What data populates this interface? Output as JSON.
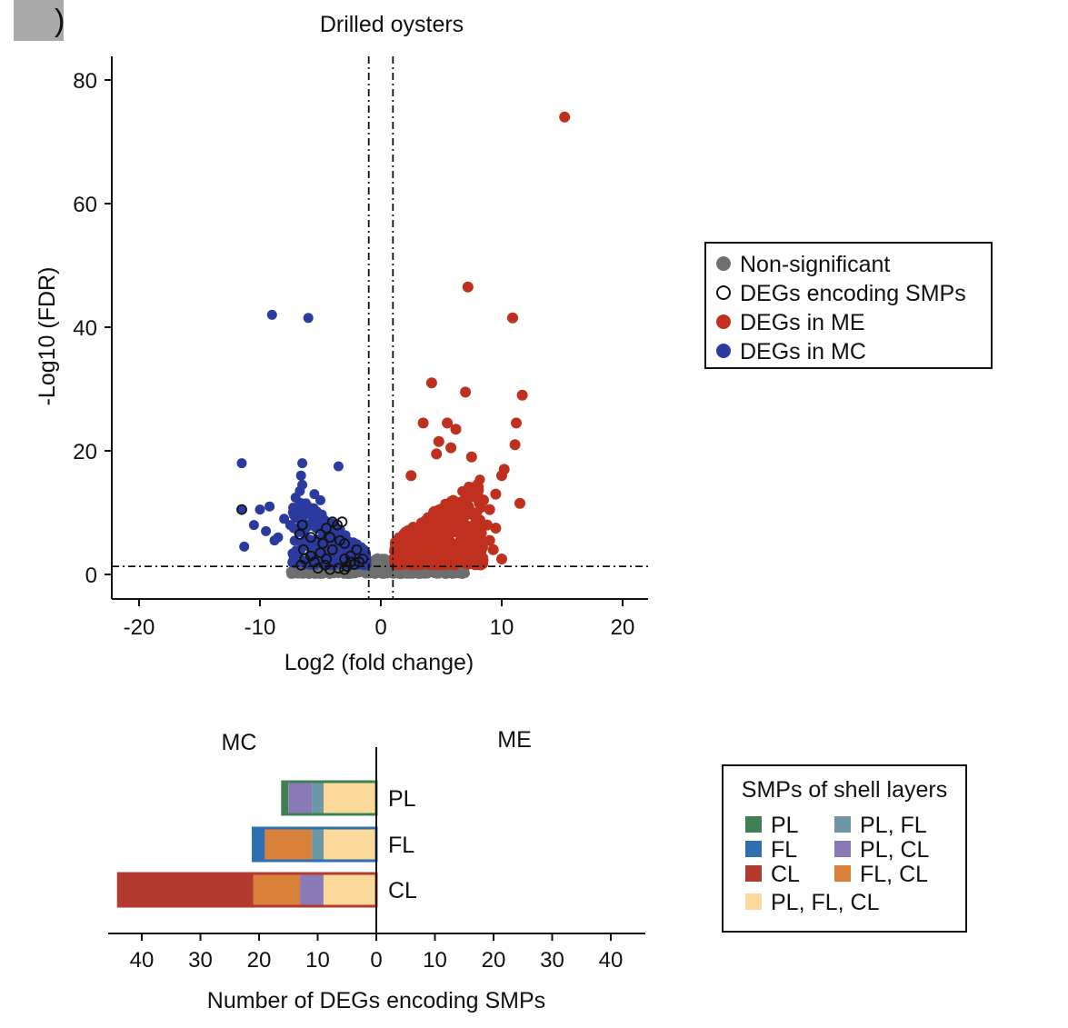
{
  "panel_label": ")",
  "chart_data": [
    {
      "type": "scatter",
      "title": "Drilled oysters",
      "xlabel": "Log2 (fold change)",
      "ylabel": "-Log10 (FDR)",
      "xlim": [
        -22,
        22
      ],
      "ylim": [
        -4,
        84
      ],
      "xticks": [
        "-20",
        "-10",
        "0",
        "10",
        "20"
      ],
      "xtick_values": [
        -20,
        -10,
        0,
        10,
        20
      ],
      "yticks": [
        "0",
        "20",
        "40",
        "60",
        "80"
      ],
      "ytick_values": [
        0,
        20,
        40,
        60,
        80
      ],
      "fc_threshold_lines": [
        -1,
        1
      ],
      "fdr_threshold_line": 1.3,
      "legend": {
        "position": "right",
        "entries": [
          {
            "label": "Non-significant",
            "style": "filled",
            "color": "#6e6e6e"
          },
          {
            "label": "DEGs encoding SMPs",
            "style": "open",
            "color": "#111111"
          },
          {
            "label": "DEGs in ME",
            "style": "filled",
            "color": "#c0301f"
          },
          {
            "label": "DEGs in MC",
            "style": "filled",
            "color": "#2b3a9e"
          }
        ]
      },
      "series": [
        {
          "name": "DEGs in ME",
          "color": "#c0301f",
          "highlight_points": [
            [
              15.2,
              74
            ],
            [
              7.2,
              46.5
            ],
            [
              10.9,
              41.5
            ],
            [
              4.2,
              31
            ],
            [
              7.0,
              29.5
            ],
            [
              11.7,
              29
            ],
            [
              3.5,
              24.5
            ],
            [
              5.5,
              24.5
            ],
            [
              6.2,
              23.5
            ],
            [
              11.2,
              24.5
            ],
            [
              4.8,
              21.5
            ],
            [
              11.1,
              21
            ],
            [
              5.8,
              20.5
            ],
            [
              7.5,
              19
            ],
            [
              4.6,
              19.5
            ],
            [
              10.2,
              17
            ],
            [
              10.0,
              16
            ],
            [
              2.5,
              16
            ],
            [
              8.0,
              13
            ],
            [
              8.5,
              12
            ],
            [
              9.5,
              13
            ],
            [
              11.5,
              11.5
            ],
            [
              9.0,
              10.5
            ],
            [
              8.8,
              8
            ],
            [
              9.5,
              7.5
            ],
            [
              9.0,
              5.5
            ],
            [
              10.0,
              2.5
            ],
            [
              9.3,
              4
            ],
            [
              7.5,
              2
            ]
          ],
          "cloud": {
            "n": 620,
            "x_range": [
              1.0,
              8.5
            ],
            "y_range": [
              1.5,
              17
            ]
          }
        },
        {
          "name": "DEGs in MC",
          "color": "#2b3a9e",
          "highlight_points": [
            [
              -9,
              42
            ],
            [
              -6,
              41.5
            ],
            [
              -11.5,
              18
            ],
            [
              -6.5,
              18
            ],
            [
              -3.5,
              17.5
            ],
            [
              -6.6,
              16
            ],
            [
              -6.5,
              14.5
            ],
            [
              -6.7,
              13.5
            ],
            [
              -5.5,
              13
            ],
            [
              -11.5,
              10.5
            ],
            [
              -10.0,
              10.5
            ],
            [
              -9.2,
              11
            ],
            [
              -8.0,
              9
            ],
            [
              -7.5,
              8
            ],
            [
              -10.5,
              8
            ],
            [
              -9.5,
              7
            ],
            [
              -8.5,
              6
            ],
            [
              -11.3,
              4.5
            ],
            [
              -8.8,
              5.5
            ],
            [
              -7.2,
              7.5
            ],
            [
              -6.8,
              10.5
            ],
            [
              -6.2,
              11.5
            ],
            [
              -5.0,
              12
            ]
          ],
          "cloud": {
            "n": 260,
            "x_range": [
              -7.5,
              -1.0
            ],
            "y_range": [
              1.5,
              13
            ]
          }
        },
        {
          "name": "Non-significant",
          "color": "#6e6e6e",
          "cloud": {
            "n": 900,
            "x_range": [
              -7.5,
              7.0
            ],
            "y_range": [
              0,
              2
            ]
          }
        },
        {
          "name": "DEGs encoding SMPs",
          "color": "#111111",
          "open": true,
          "highlight_points": [
            [
              -11.5,
              10.5
            ],
            [
              -6.5,
              8
            ],
            [
              -6.7,
              6.5
            ],
            [
              -5.8,
              6
            ],
            [
              -4.5,
              7.5
            ],
            [
              -4.0,
              8.5
            ],
            [
              -3.6,
              8
            ],
            [
              -3.2,
              8.5
            ],
            [
              -5.0,
              6.5
            ],
            [
              -4.8,
              5
            ],
            [
              -4.2,
              6
            ],
            [
              -3.4,
              5.5
            ],
            [
              -6.4,
              4
            ],
            [
              -5.8,
              3
            ],
            [
              -5.0,
              3.5
            ],
            [
              -4.5,
              2.5
            ],
            [
              -4.0,
              4
            ],
            [
              -3.0,
              5
            ],
            [
              -2.5,
              3
            ],
            [
              -3.0,
              2.5
            ],
            [
              -2.0,
              4
            ],
            [
              -1.8,
              2
            ],
            [
              -2.5,
              2
            ],
            [
              -6.3,
              2.5
            ],
            [
              -5.5,
              2
            ],
            [
              -4.6,
              1.5
            ],
            [
              -3.5,
              1
            ],
            [
              -2.8,
              1.3
            ],
            [
              -1.5,
              2.5
            ],
            [
              -6.6,
              1.5
            ],
            [
              -5.2,
              1
            ],
            [
              -4.2,
              0.8
            ],
            [
              -3.0,
              0.8
            ],
            [
              -2.2,
              1.6
            ]
          ]
        }
      ]
    },
    {
      "type": "bar",
      "orientation": "horizontal-stacked",
      "xlabel": "Number of DEGs encoding SMPs",
      "group_labels": [
        "MC",
        "ME"
      ],
      "xticks": [
        "40",
        "30",
        "20",
        "10",
        "0",
        "10",
        "20",
        "30",
        "40"
      ],
      "xtick_values": [
        -40,
        -30,
        -20,
        -10,
        0,
        10,
        20,
        30,
        40
      ],
      "xlim": [
        -46,
        46
      ],
      "categories": [
        "PL",
        "FL",
        "CL"
      ],
      "series": [
        {
          "name": "PL, FL, CL",
          "color": "#fbd99a",
          "values_MC": [
            9,
            9,
            9
          ]
        },
        {
          "name": "PL, FL",
          "color": "#6f98a6",
          "values_MC": [
            2,
            2,
            0
          ]
        },
        {
          "name": "PL, CL",
          "color": "#8979b6",
          "values_MC": [
            4,
            0,
            4
          ]
        },
        {
          "name": "FL, CL",
          "color": "#d9803a",
          "values_MC": [
            0,
            8,
            8
          ]
        },
        {
          "name": "PL",
          "color": "#3f8153",
          "values_MC": [
            1,
            0,
            0
          ]
        },
        {
          "name": "FL",
          "color": "#2f6fb0",
          "values_MC": [
            0,
            2,
            0
          ]
        },
        {
          "name": "CL",
          "color": "#b23a2e",
          "values_MC": [
            0,
            0,
            23
          ]
        }
      ],
      "values_ME": [
        0,
        0,
        0
      ],
      "totals_MC": [
        16,
        21,
        44
      ],
      "outline_colors": [
        "#3f8153",
        "#2f6fb0",
        "#b23a2e"
      ],
      "legend": {
        "title": "SMPs of shell layers",
        "position": "right",
        "entries": [
          {
            "label": "PL",
            "color": "#3f8153"
          },
          {
            "label": "PL, FL",
            "color": "#6f98a6"
          },
          {
            "label": "FL",
            "color": "#2f6fb0"
          },
          {
            "label": "PL, CL",
            "color": "#8979b6"
          },
          {
            "label": "CL",
            "color": "#b23a2e"
          },
          {
            "label": "FL, CL",
            "color": "#d9803a"
          },
          {
            "label": "PL, FL, CL",
            "color": "#fbd99a"
          }
        ]
      }
    }
  ]
}
